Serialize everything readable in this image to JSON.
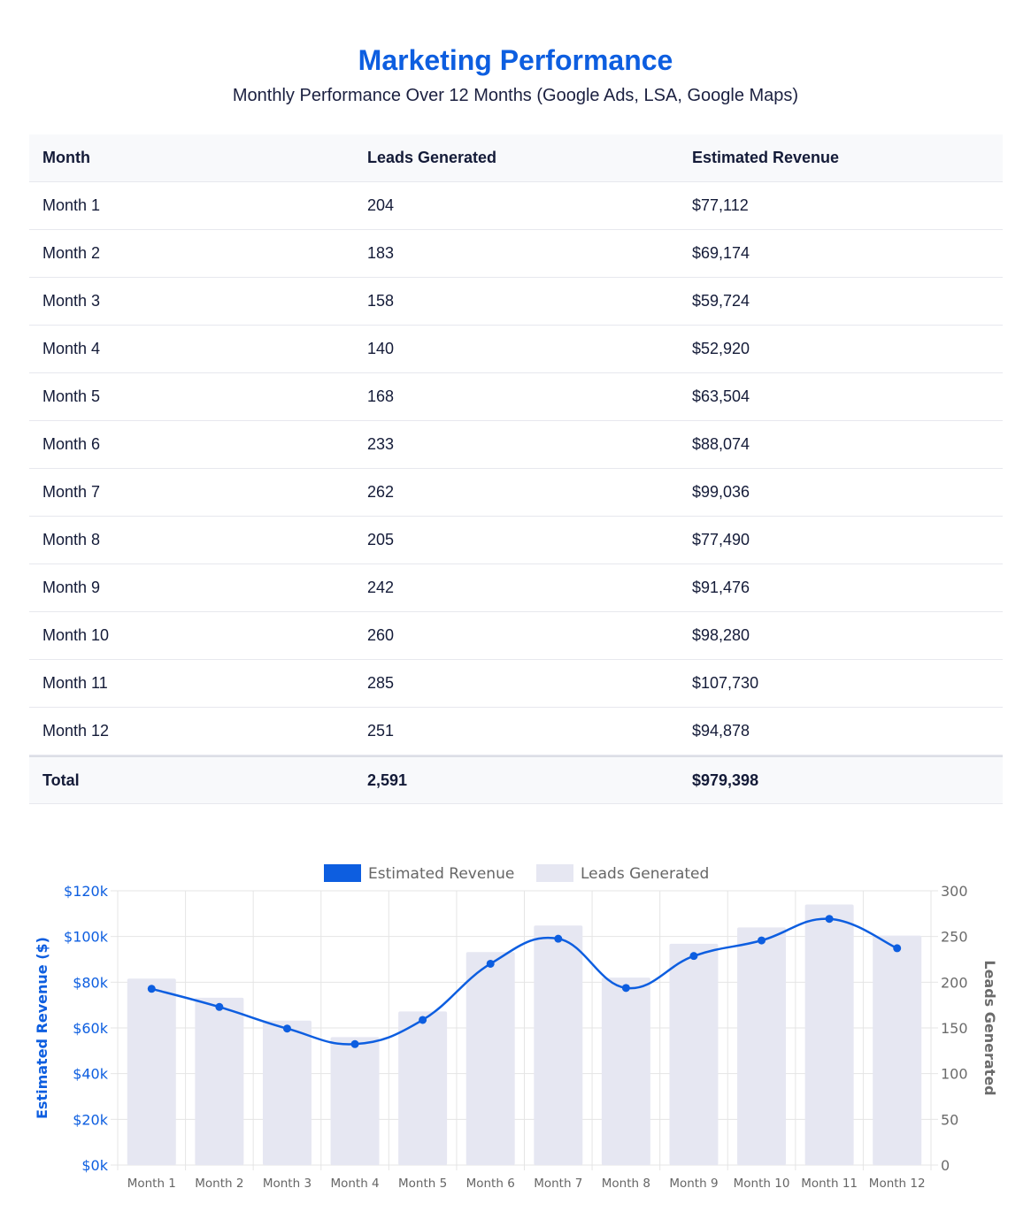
{
  "header": {
    "title": "Marketing Performance",
    "subtitle": "Monthly Performance Over 12 Months (Google Ads, LSA, Google Maps)"
  },
  "table": {
    "columns": [
      "Month",
      "Leads Generated",
      "Estimated Revenue"
    ],
    "rows": [
      [
        "Month 1",
        "204",
        "$77,112"
      ],
      [
        "Month 2",
        "183",
        "$69,174"
      ],
      [
        "Month 3",
        "158",
        "$59,724"
      ],
      [
        "Month 4",
        "140",
        "$52,920"
      ],
      [
        "Month 5",
        "168",
        "$63,504"
      ],
      [
        "Month 6",
        "233",
        "$88,074"
      ],
      [
        "Month 7",
        "262",
        "$99,036"
      ],
      [
        "Month 8",
        "205",
        "$77,490"
      ],
      [
        "Month 9",
        "242",
        "$91,476"
      ],
      [
        "Month 10",
        "260",
        "$98,280"
      ],
      [
        "Month 11",
        "285",
        "$107,730"
      ],
      [
        "Month 12",
        "251",
        "$94,878"
      ]
    ],
    "total": [
      "Total",
      "2,591",
      "$979,398"
    ]
  },
  "colors": {
    "accent": "#0d5ee0",
    "bar": "#e6e7f2",
    "grid": "#e5e5e5",
    "axis_right": "#6b6b6b"
  },
  "chart_data": {
    "type": "bar",
    "categories": [
      "Month 1",
      "Month 2",
      "Month 3",
      "Month 4",
      "Month 5",
      "Month 6",
      "Month 7",
      "Month 8",
      "Month 9",
      "Month 10",
      "Month 11",
      "Month 12"
    ],
    "series": [
      {
        "name": "Estimated Revenue",
        "type": "line",
        "axis": "left",
        "values": [
          77112,
          69174,
          59724,
          52920,
          63504,
          88074,
          99036,
          77490,
          91476,
          98280,
          107730,
          94878
        ]
      },
      {
        "name": "Leads Generated",
        "type": "bar",
        "axis": "right",
        "values": [
          204,
          183,
          158,
          140,
          168,
          233,
          262,
          205,
          242,
          260,
          285,
          251
        ]
      }
    ],
    "ylabel": "Estimated Revenue ($)",
    "y2label": "Leads Generated",
    "ylim": [
      0,
      120000
    ],
    "y2lim": [
      0,
      300
    ],
    "yticks": [
      "$0k",
      "$20k",
      "$40k",
      "$60k",
      "$80k",
      "$100k",
      "$120k"
    ],
    "y2ticks": [
      "0",
      "50",
      "100",
      "150",
      "200",
      "250",
      "300"
    ],
    "legend_position": "top-center",
    "grid": true
  }
}
